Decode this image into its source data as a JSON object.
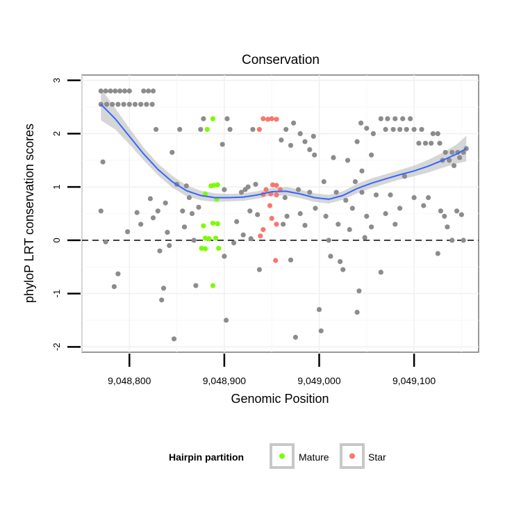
{
  "chart_data": {
    "type": "scatter",
    "title": "Conservation",
    "xlabel": "Genomic Position",
    "ylabel": "phyloP LRT conservation scores",
    "xlim": [
      9048750,
      9049168
    ],
    "ylim": [
      -2.1,
      3.1
    ],
    "x_ticks": [
      9048800,
      9048900,
      9049000,
      9049100
    ],
    "x_tick_labels": [
      "9,048,800",
      "9,048,900",
      "9,049,000",
      "9,049,100"
    ],
    "y_ticks": [
      -2,
      -1,
      0,
      1,
      2,
      3
    ],
    "y_tick_labels": [
      "-2",
      "-1",
      "0",
      "1",
      "2",
      "3"
    ],
    "grid": true,
    "reference_line": {
      "y": 0,
      "style": "dashed"
    },
    "legend": {
      "title": "Hairpin partition",
      "placement": "bottom",
      "entries": [
        {
          "label": "Mature",
          "color": "#7cfc00"
        },
        {
          "label": "Star",
          "color": "#f8766d"
        }
      ]
    },
    "colors": {
      "other": "#8c8c8c",
      "mature": "#7cfc00",
      "star": "#f8766d",
      "smooth": "#3366ff",
      "ribbon": "#c8c8c8"
    },
    "smooth": {
      "x": [
        9048770,
        9048785,
        9048800,
        9048815,
        9048830,
        9048845,
        9048860,
        9048875,
        9048890,
        9048905,
        9048920,
        9048935,
        9048950,
        9048965,
        9048980,
        9048995,
        9049010,
        9049025,
        9049040,
        9049055,
        9049070,
        9049085,
        9049100,
        9049115,
        9049130,
        9049145,
        9049155
      ],
      "y": [
        2.55,
        2.28,
        1.95,
        1.62,
        1.33,
        1.1,
        0.93,
        0.84,
        0.8,
        0.8,
        0.81,
        0.85,
        0.91,
        0.92,
        0.87,
        0.8,
        0.77,
        0.84,
        0.97,
        1.07,
        1.15,
        1.23,
        1.3,
        1.39,
        1.5,
        1.62,
        1.72
      ],
      "lower": [
        2.25,
        2.08,
        1.8,
        1.5,
        1.22,
        0.99,
        0.83,
        0.75,
        0.72,
        0.73,
        0.74,
        0.78,
        0.84,
        0.84,
        0.79,
        0.72,
        0.69,
        0.76,
        0.88,
        0.98,
        1.06,
        1.14,
        1.2,
        1.27,
        1.36,
        1.44,
        1.48
      ],
      "upper": [
        2.85,
        2.48,
        2.1,
        1.74,
        1.44,
        1.21,
        1.03,
        0.93,
        0.88,
        0.87,
        0.88,
        0.92,
        0.98,
        1.0,
        0.95,
        0.88,
        0.85,
        0.92,
        1.06,
        1.16,
        1.24,
        1.32,
        1.4,
        1.51,
        1.64,
        1.8,
        1.96
      ]
    },
    "mature_points": [
      [
        9048882,
        2.08
      ],
      [
        9048888,
        2.28
      ],
      [
        9048886,
        1.02
      ],
      [
        9048889,
        1.03
      ],
      [
        9048893,
        1.04
      ],
      [
        9048892,
        0.77
      ],
      [
        9048880,
        0.87
      ],
      [
        9048878,
        0.27
      ],
      [
        9048888,
        0.32
      ],
      [
        9048893,
        0.31
      ],
      [
        9048880,
        0.04
      ],
      [
        9048884,
        0.03
      ],
      [
        9048891,
        0.04
      ],
      [
        9048876,
        -0.15
      ],
      [
        9048880,
        -0.16
      ],
      [
        9048894,
        -0.15
      ],
      [
        9048888,
        -0.85
      ]
    ],
    "star_points": [
      [
        9048941,
        2.28
      ],
      [
        9048946,
        2.27
      ],
      [
        9048950,
        2.28
      ],
      [
        9048955,
        2.27
      ],
      [
        9048937,
        2.08
      ],
      [
        9048944,
        0.95
      ],
      [
        9048951,
        1.04
      ],
      [
        9048955,
        1.03
      ],
      [
        9048959,
        0.95
      ],
      [
        9048941,
        0.86
      ],
      [
        9048949,
        0.87
      ],
      [
        9048955,
        0.85
      ],
      [
        9048948,
        0.65
      ],
      [
        9048950,
        0.41
      ],
      [
        9048955,
        0.3
      ],
      [
        9048941,
        0.2
      ],
      [
        9048938,
        0.08
      ],
      [
        9048954,
        -0.38
      ]
    ],
    "other_points": [
      [
        9048770,
        2.8
      ],
      [
        9048775,
        2.8
      ],
      [
        9048780,
        2.8
      ],
      [
        9048785,
        2.8
      ],
      [
        9048790,
        2.8
      ],
      [
        9048795,
        2.8
      ],
      [
        9048800,
        2.8
      ],
      [
        9048815,
        2.8
      ],
      [
        9048820,
        2.8
      ],
      [
        9048825,
        2.8
      ],
      [
        9048770,
        2.55
      ],
      [
        9048776,
        2.55
      ],
      [
        9048782,
        2.55
      ],
      [
        9048788,
        2.55
      ],
      [
        9048794,
        2.55
      ],
      [
        9048800,
        2.55
      ],
      [
        9048806,
        2.55
      ],
      [
        9048812,
        2.55
      ],
      [
        9048818,
        2.55
      ],
      [
        9048824,
        2.55
      ],
      [
        9048973,
        2.2
      ],
      [
        9048980,
        2.0
      ],
      [
        9048985,
        1.85
      ],
      [
        9048990,
        1.7
      ],
      [
        9048995,
        1.6
      ],
      [
        9048965,
        2.08
      ],
      [
        9048960,
        1.88
      ],
      [
        9048970,
        1.78
      ],
      [
        9049065,
        2.28
      ],
      [
        9049072,
        2.28
      ],
      [
        9049080,
        2.28
      ],
      [
        9049088,
        2.28
      ],
      [
        9049096,
        2.28
      ],
      [
        9049070,
        2.08
      ],
      [
        9049078,
        2.08
      ],
      [
        9049085,
        2.08
      ],
      [
        9049092,
        2.08
      ],
      [
        9049100,
        2.08
      ],
      [
        9049108,
        2.08
      ],
      [
        9049120,
        2.0
      ],
      [
        9049125,
        2.0
      ],
      [
        9049105,
        1.82
      ],
      [
        9049112,
        1.82
      ],
      [
        9049118,
        1.82
      ],
      [
        9049127,
        1.82
      ],
      [
        9049133,
        1.65
      ],
      [
        9049140,
        1.65
      ],
      [
        9049146,
        1.65
      ],
      [
        9049152,
        1.65
      ],
      [
        9049130,
        1.5
      ],
      [
        9049137,
        1.5
      ],
      [
        9049044,
        2.2
      ],
      [
        9049050,
        2.1
      ],
      [
        9049057,
        2.0
      ],
      [
        9049040,
        1.85
      ],
      [
        9049055,
        1.6
      ],
      [
        9049030,
        1.5
      ],
      [
        9049045,
        1.3
      ],
      [
        9049060,
        0.85
      ],
      [
        9049038,
        1.1
      ],
      [
        9049045,
        0.9
      ],
      [
        9048772,
        1.47
      ],
      [
        9048770,
        0.55
      ],
      [
        9048775,
        -0.03
      ],
      [
        9048784,
        -0.87
      ],
      [
        9048788,
        -0.63
      ],
      [
        9048798,
        0.16
      ],
      [
        9048808,
        0.52
      ],
      [
        9048812,
        0.3
      ],
      [
        9048822,
        0.78
      ],
      [
        9048825,
        0.42
      ],
      [
        9048828,
        2.08
      ],
      [
        9048830,
        0.55
      ],
      [
        9048832,
        -0.2
      ],
      [
        9048834,
        -1.12
      ],
      [
        9048836,
        -0.9
      ],
      [
        9048838,
        0.7
      ],
      [
        9048840,
        0.15
      ],
      [
        9048842,
        -0.1
      ],
      [
        9048845,
        1.65
      ],
      [
        9048847,
        -1.85
      ],
      [
        9048850,
        1.05
      ],
      [
        9048853,
        2.08
      ],
      [
        9048856,
        0.55
      ],
      [
        9048858,
        0.25
      ],
      [
        9048860,
        1.02
      ],
      [
        9048863,
        0.8
      ],
      [
        9048866,
        0.5
      ],
      [
        9048868,
        0.0
      ],
      [
        9048870,
        -0.85
      ],
      [
        9048873,
        0.62
      ],
      [
        9048875,
        2.08
      ],
      [
        9048878,
        2.28
      ],
      [
        9048898,
        1.8
      ],
      [
        9048900,
        0.95
      ],
      [
        9048903,
        2.28
      ],
      [
        9048906,
        2.08
      ],
      [
        9048910,
        -0.05
      ],
      [
        9048913,
        0.35
      ],
      [
        9048918,
        0.9
      ],
      [
        9048920,
        0.1
      ],
      [
        9048900,
        -0.3
      ],
      [
        9048902,
        -1.5
      ],
      [
        9048922,
        0.95
      ],
      [
        9048925,
        1.0
      ],
      [
        9048927,
        0.55
      ],
      [
        9048930,
        2.08
      ],
      [
        9048933,
        1.05
      ],
      [
        9048935,
        0.48
      ],
      [
        9048937,
        -0.55
      ],
      [
        9048928,
        0.03
      ],
      [
        9048962,
        0.3
      ],
      [
        9048964,
        0.8
      ],
      [
        9048966,
        0.45
      ],
      [
        9048970,
        -0.37
      ],
      [
        9048975,
        -1.82
      ],
      [
        9048978,
        0.95
      ],
      [
        9048980,
        0.5
      ],
      [
        9048985,
        0.28
      ],
      [
        9048990,
        0.9
      ],
      [
        9048994,
        1.95
      ],
      [
        9048996,
        0.6
      ],
      [
        9049000,
        -1.3
      ],
      [
        9049002,
        -1.7
      ],
      [
        9049005,
        1.1
      ],
      [
        9049007,
        0.45
      ],
      [
        9049010,
        0.0
      ],
      [
        9049012,
        -0.3
      ],
      [
        9049015,
        1.55
      ],
      [
        9049018,
        0.9
      ],
      [
        9049020,
        0.3
      ],
      [
        9049022,
        -0.4
      ],
      [
        9049025,
        -0.55
      ],
      [
        9049028,
        0.75
      ],
      [
        9049032,
        0.2
      ],
      [
        9049035,
        0.6
      ],
      [
        9049040,
        -1.35
      ],
      [
        9049042,
        -0.95
      ],
      [
        9049048,
        0.05
      ],
      [
        9049050,
        0.45
      ],
      [
        9049055,
        0.25
      ],
      [
        9049065,
        -0.6
      ],
      [
        9049070,
        0.5
      ],
      [
        9049075,
        0.85
      ],
      [
        9049080,
        0.3
      ],
      [
        9049085,
        0.6
      ],
      [
        9049090,
        1.2
      ],
      [
        9049100,
        0.8
      ],
      [
        9049110,
        0.65
      ],
      [
        9049115,
        0.8
      ],
      [
        9049125,
        -0.25
      ],
      [
        9049128,
        0.55
      ],
      [
        9049132,
        0.45
      ],
      [
        9049135,
        0.25
      ],
      [
        9049140,
        0.0
      ],
      [
        9049145,
        0.55
      ],
      [
        9049150,
        0.48
      ],
      [
        9049152,
        0.0
      ],
      [
        9049148,
        1.55
      ],
      [
        9049155,
        1.72
      ],
      [
        9049142,
        1.4
      ]
    ]
  }
}
